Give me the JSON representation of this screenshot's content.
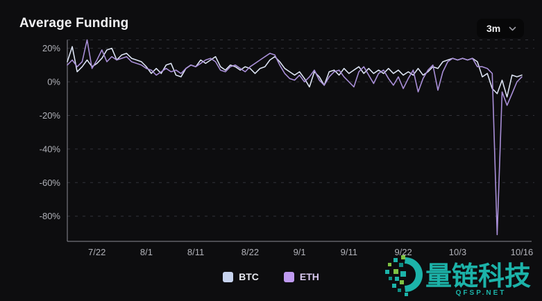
{
  "header": {
    "title": "Average Funding",
    "range_selector": {
      "value": "3m"
    }
  },
  "chart_data": {
    "type": "line",
    "title": "Average Funding",
    "ylabel": "",
    "xlabel": "",
    "ylim": [
      -95,
      25
    ],
    "grid": "horizontal dashed",
    "legend_position": "bottom center",
    "y_ticks": [
      {
        "label": "20%",
        "value": 20
      },
      {
        "label": "0%",
        "value": 0
      },
      {
        "label": "-20%",
        "value": -20
      },
      {
        "label": "-40%",
        "value": -40
      },
      {
        "label": "-60%",
        "value": -60
      },
      {
        "label": "-80%",
        "value": -80
      }
    ],
    "x_ticks": [
      "7/22",
      "8/1",
      "8/11",
      "8/22",
      "9/1",
      "9/11",
      "9/22",
      "10/3",
      "10/16"
    ],
    "x": [
      "7/16",
      "7/17",
      "7/18",
      "7/19",
      "7/20",
      "7/21",
      "7/22",
      "7/23",
      "7/24",
      "7/25",
      "7/26",
      "7/27",
      "7/28",
      "7/29",
      "7/30",
      "7/31",
      "8/1",
      "8/2",
      "8/3",
      "8/4",
      "8/5",
      "8/6",
      "8/7",
      "8/8",
      "8/9",
      "8/10",
      "8/11",
      "8/12",
      "8/13",
      "8/14",
      "8/15",
      "8/16",
      "8/17",
      "8/18",
      "8/19",
      "8/20",
      "8/21",
      "8/22",
      "8/23",
      "8/24",
      "8/25",
      "8/26",
      "8/27",
      "8/28",
      "8/29",
      "8/30",
      "8/31",
      "9/1",
      "9/2",
      "9/3",
      "9/4",
      "9/5",
      "9/6",
      "9/7",
      "9/8",
      "9/9",
      "9/10",
      "9/11",
      "9/12",
      "9/13",
      "9/14",
      "9/15",
      "9/16",
      "9/17",
      "9/18",
      "9/19",
      "9/20",
      "9/21",
      "9/22",
      "9/23",
      "9/24",
      "9/25",
      "9/26",
      "9/27",
      "9/28",
      "9/29",
      "9/30",
      "10/1",
      "10/2",
      "10/3",
      "10/4",
      "10/5",
      "10/6",
      "10/7",
      "10/8",
      "10/9",
      "10/10",
      "10/11",
      "10/12",
      "10/13",
      "10/14",
      "10/15",
      "10/16"
    ],
    "series": [
      {
        "name": "BTC",
        "color": "#dce3f3",
        "swatch": "#c7d3ee",
        "label_color": "#e7e9f0",
        "values": [
          12,
          21,
          6,
          9,
          13,
          9,
          11,
          14,
          19,
          20,
          13,
          16,
          17,
          14,
          13,
          12,
          9,
          5,
          8,
          5,
          10,
          11,
          4,
          3,
          8,
          10,
          9,
          13,
          11,
          13,
          15,
          9,
          7,
          10,
          9,
          7,
          9,
          8,
          5,
          8,
          9,
          13,
          15,
          12,
          8,
          6,
          4,
          6,
          2,
          -3,
          6,
          3,
          -2,
          6,
          7,
          4,
          8,
          5,
          7,
          9,
          5,
          8,
          5,
          7,
          5,
          8,
          5,
          7,
          4,
          6,
          4,
          8,
          4,
          6,
          9,
          8,
          12,
          13,
          14,
          13,
          14,
          13,
          14,
          12,
          3,
          5,
          -4,
          -7,
          1,
          -9,
          4,
          3,
          4
        ]
      },
      {
        "name": "ETH",
        "color": "#a98fd8",
        "swatch": "#bf9af0",
        "label_color": "#d9c9f0",
        "values": [
          10,
          13,
          9,
          12,
          25,
          8,
          13,
          19,
          12,
          15,
          13,
          14,
          15,
          12,
          11,
          10,
          8,
          7,
          4,
          6,
          8,
          6,
          7,
          5,
          8,
          10,
          9,
          11,
          13,
          14,
          12,
          7,
          6,
          9,
          10,
          8,
          6,
          9,
          11,
          13,
          15,
          17,
          16,
          10,
          5,
          2,
          1,
          4,
          0,
          3,
          7,
          1,
          -2,
          3,
          6,
          7,
          3,
          0,
          -3,
          6,
          9,
          4,
          -1,
          5,
          7,
          2,
          -2,
          3,
          -4,
          2,
          7,
          -6,
          2,
          7,
          10,
          -5,
          6,
          12,
          14,
          13,
          14,
          13,
          14,
          9,
          9,
          8,
          5,
          -91,
          -6,
          -14,
          -7,
          0,
          3
        ]
      }
    ]
  },
  "watermark": {
    "brand_text": "量链科技",
    "domain": "QFSP.NET",
    "color": "#1cb3a9",
    "accent_green": "#7dc142",
    "accent_dark": "#0e8e85"
  }
}
